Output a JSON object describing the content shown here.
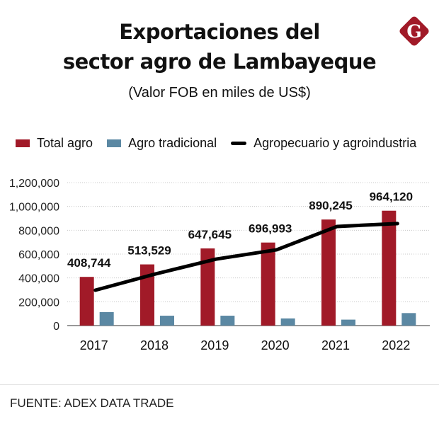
{
  "header": {
    "title_line1": "Exportaciones del",
    "title_line2": "sector agro de Lambayeque",
    "subtitle": "(Valor FOB en miles de US$)",
    "logo_letter": "G"
  },
  "colors": {
    "total_agro": "#a11a28",
    "agro_tradicional": "#5b88a3",
    "line": "#000000",
    "logo": "#a11a28"
  },
  "legend": [
    {
      "label": "Total agro",
      "type": "bar"
    },
    {
      "label": "Agro tradicional",
      "type": "bar"
    },
    {
      "label": "Agropecuario y agroindustria",
      "type": "line"
    }
  ],
  "footer": {
    "source": "FUENTE: ADEX DATA TRADE"
  },
  "chart_data": {
    "type": "bar",
    "title": "Exportaciones del sector agro de Lambayeque",
    "subtitle": "(Valor FOB en miles de US$)",
    "xlabel": "",
    "ylabel": "",
    "categories": [
      "2017",
      "2018",
      "2019",
      "2020",
      "2021",
      "2022"
    ],
    "ylim": [
      0,
      1200000
    ],
    "yticks": [
      0,
      200000,
      400000,
      600000,
      800000,
      1000000,
      1200000
    ],
    "ytick_labels": [
      "0",
      "200,000",
      "400,000",
      "600,000",
      "800,000",
      "1,000,000",
      "1,200,000"
    ],
    "grid": true,
    "legend_position": "top",
    "series": [
      {
        "name": "Total agro",
        "kind": "bar",
        "values": [
          408744,
          513529,
          647645,
          696993,
          890245,
          964120
        ],
        "labels": [
          "408,744",
          "513,529",
          "647,645",
          "696,993",
          "890,245",
          "964,120"
        ]
      },
      {
        "name": "Agro tradicional",
        "kind": "bar",
        "values": [
          113000,
          83000,
          83000,
          60000,
          50000,
          105000
        ]
      },
      {
        "name": "Agropecuario y agroindustria",
        "kind": "line",
        "values": [
          297000,
          434000,
          558000,
          636000,
          832000,
          856000
        ]
      }
    ]
  }
}
